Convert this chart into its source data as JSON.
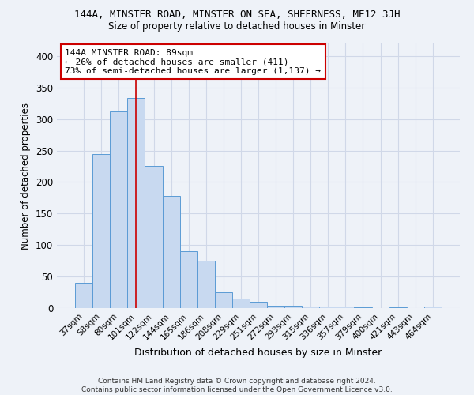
{
  "title1": "144A, MINSTER ROAD, MINSTER ON SEA, SHEERNESS, ME12 3JH",
  "title2": "Size of property relative to detached houses in Minster",
  "xlabel": "Distribution of detached houses by size in Minster",
  "ylabel": "Number of detached properties",
  "footer": "Contains HM Land Registry data © Crown copyright and database right 2024.\nContains public sector information licensed under the Open Government Licence v3.0.",
  "categories": [
    "37sqm",
    "58sqm",
    "80sqm",
    "101sqm",
    "122sqm",
    "144sqm",
    "165sqm",
    "186sqm",
    "208sqm",
    "229sqm",
    "251sqm",
    "272sqm",
    "293sqm",
    "315sqm",
    "336sqm",
    "357sqm",
    "379sqm",
    "400sqm",
    "421sqm",
    "443sqm",
    "464sqm"
  ],
  "bar_heights": [
    40,
    245,
    312,
    333,
    226,
    178,
    90,
    75,
    25,
    15,
    10,
    4,
    4,
    3,
    3,
    2,
    1,
    0,
    1,
    0,
    2
  ],
  "bar_color": "#c8d9f0",
  "bar_edge_color": "#5b9bd5",
  "annotation_text": "144A MINSTER ROAD: 89sqm\n← 26% of detached houses are smaller (411)\n73% of semi-detached houses are larger (1,137) →",
  "annotation_box_color": "#ffffff",
  "annotation_box_edge_color": "#cc0000",
  "red_line_x": 2.97,
  "ylim": [
    0,
    420
  ],
  "yticks": [
    0,
    50,
    100,
    150,
    200,
    250,
    300,
    350,
    400
  ],
  "grid_color": "#d0d8e8",
  "background_color": "#eef2f8"
}
